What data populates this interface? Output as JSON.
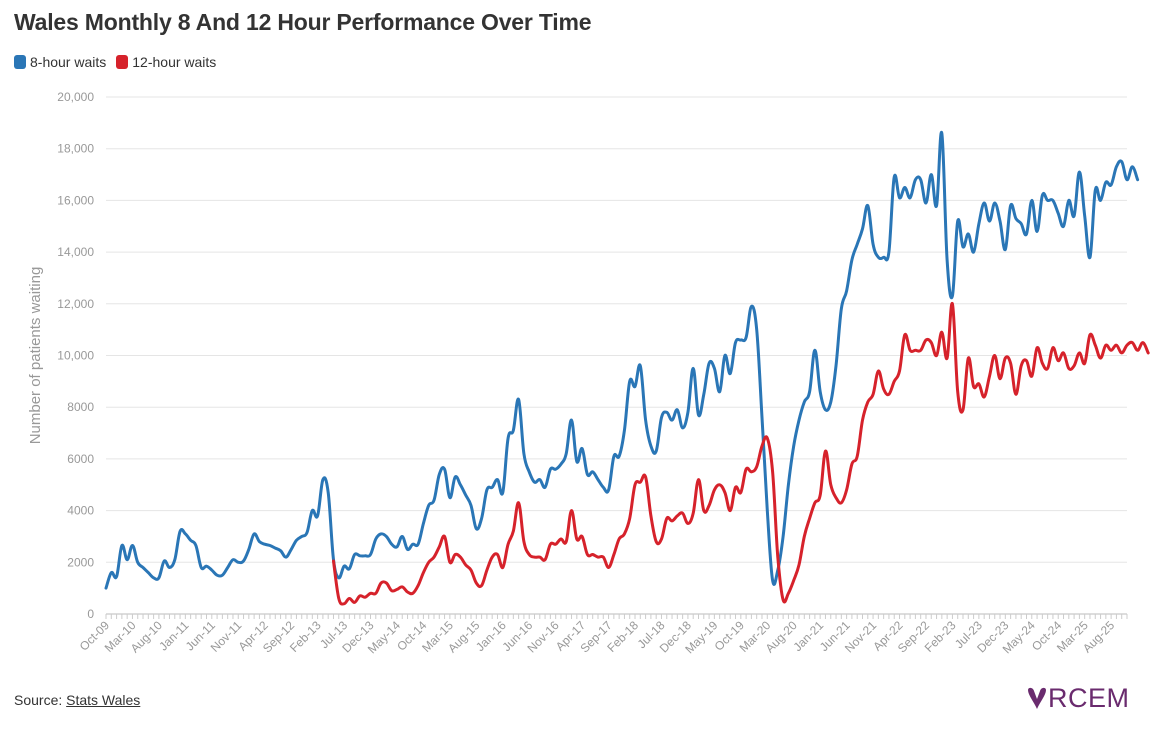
{
  "title": "Wales Monthly 8 And 12 Hour Performance Over Time",
  "source": {
    "label": "Source:",
    "link_text": "Stats Wales"
  },
  "logo_text": "RCEM",
  "colors": {
    "series_8": "#2a76b6",
    "series_12": "#d6222b",
    "logo": "#6a2b6e",
    "grid": "#e5e5e5"
  },
  "chart_data": {
    "type": "line",
    "ylabel": "Number of patients waiting",
    "ylim": [
      0,
      20000
    ],
    "y_ticks": [
      {
        "value": 0,
        "label": "0"
      },
      {
        "value": 2000,
        "label": "2000"
      },
      {
        "value": 4000,
        "label": "4000"
      },
      {
        "value": 6000,
        "label": "6000"
      },
      {
        "value": 8000,
        "label": "8000"
      },
      {
        "value": 10000,
        "label": "10,000"
      },
      {
        "value": 12000,
        "label": "12,000"
      },
      {
        "value": 14000,
        "label": "14,000"
      },
      {
        "value": 16000,
        "label": "16,000"
      },
      {
        "value": 18000,
        "label": "18,000"
      },
      {
        "value": 20000,
        "label": "20,000"
      }
    ],
    "x_start": "Oct-09",
    "x_end": "Nov-25",
    "x_tick_labels": [
      "Oct-09",
      "Mar-10",
      "Aug-10",
      "Jan-11",
      "Jun-11",
      "Nov-11",
      "Apr-12",
      "Sep-12",
      "Feb-13",
      "Jul-13",
      "Dec-13",
      "May-14",
      "Oct-14",
      "Mar-15",
      "Aug-15",
      "Jan-16",
      "Jun-16",
      "Nov-16",
      "Apr-17",
      "Sep-17",
      "Feb-18",
      "Jul-18",
      "Dec-18",
      "May-19",
      "Oct-19",
      "Mar-20",
      "Aug-20",
      "Jan-21",
      "Jun-21",
      "Nov-21",
      "Apr-22",
      "Sep-22",
      "Feb-23",
      "Jul-23",
      "Dec-23",
      "May-24",
      "Oct-24",
      "Mar-25",
      "Aug-25"
    ],
    "legend_position": "top-left",
    "series": [
      {
        "name": "8-hour waits",
        "start": "Oct-09",
        "values": [
          1000,
          1600,
          1450,
          2650,
          2100,
          2650,
          2000,
          1800,
          1600,
          1400,
          1400,
          2050,
          1800,
          2100,
          3200,
          3100,
          2850,
          2650,
          1800,
          1850,
          1700,
          1500,
          1500,
          1800,
          2100,
          2000,
          2050,
          2500,
          3100,
          2800,
          2700,
          2650,
          2550,
          2450,
          2200,
          2500,
          2850,
          3000,
          3150,
          4000,
          3800,
          5200,
          4700,
          2100,
          1400,
          1850,
          1750,
          2300,
          2250,
          2250,
          2300,
          2900,
          3100,
          3000,
          2700,
          2600,
          3000,
          2500,
          2700,
          2700,
          3500,
          4200,
          4400,
          5400,
          5600,
          4500,
          5300,
          5000,
          4600,
          4200,
          3300,
          3700,
          4800,
          4900,
          5200,
          4700,
          6800,
          7100,
          8300,
          6200,
          5500,
          5100,
          5200,
          4900,
          5600,
          5600,
          5800,
          6200,
          7500,
          5900,
          6400,
          5400,
          5500,
          5200,
          4900,
          4800,
          6100,
          6100,
          7100,
          9000,
          8800,
          9600,
          7500,
          6500,
          6300,
          7600,
          7800,
          7500,
          7900,
          7200,
          7800,
          9500,
          7700,
          8500,
          9700,
          9500,
          8600,
          10000,
          9300,
          10500,
          10600,
          10700,
          11900,
          11000,
          7600,
          4000,
          1300,
          1700,
          3000,
          5000,
          6500,
          7500,
          8200,
          8600,
          10200,
          8600,
          7900,
          8200,
          9600,
          11800,
          12500,
          13700,
          14300,
          14900,
          15800,
          14300,
          13800,
          13800,
          14000,
          16900,
          16100,
          16500,
          16100,
          16800,
          16800,
          15900,
          17000,
          15800,
          18600,
          13700,
          12300,
          15200,
          14200,
          14700,
          14000,
          15100,
          15900,
          15200,
          15900,
          15200,
          14100,
          15800,
          15300,
          15100,
          14700,
          16000,
          14800,
          16200,
          16000,
          16000,
          15500,
          15000,
          16000,
          15400,
          17100,
          15400,
          13800,
          16400,
          16000,
          16700,
          16600,
          17300,
          17500,
          16800,
          17300,
          16800
        ]
      },
      {
        "name": "12-hour waits",
        "start": "May-13",
        "values": [
          2050,
          600,
          400,
          600,
          450,
          700,
          650,
          800,
          800,
          1200,
          1200,
          900,
          950,
          1050,
          850,
          800,
          1100,
          1600,
          2000,
          2200,
          2600,
          3000,
          2000,
          2300,
          2200,
          1900,
          1700,
          1200,
          1100,
          1700,
          2200,
          2300,
          1800,
          2700,
          3200,
          4300,
          2800,
          2300,
          2200,
          2200,
          2100,
          2700,
          2700,
          2900,
          2800,
          4000,
          2900,
          3000,
          2300,
          2300,
          2200,
          2200,
          1800,
          2300,
          2900,
          3100,
          3700,
          5000,
          5100,
          5300,
          3800,
          2800,
          2900,
          3700,
          3600,
          3800,
          3900,
          3500,
          3900,
          5200,
          4000,
          4200,
          4800,
          5000,
          4700,
          4000,
          4900,
          4700,
          5600,
          5500,
          5700,
          6500,
          6800,
          5500,
          2200,
          550,
          800,
          1300,
          1900,
          3000,
          3700,
          4300,
          4600,
          6300,
          5000,
          4500,
          4300,
          4800,
          5800,
          6100,
          7500,
          8200,
          8500,
          9400,
          8700,
          8500,
          9000,
          9400,
          10800,
          10200,
          10200,
          10200,
          10600,
          10500,
          10000,
          10900,
          9900,
          12000,
          8600,
          7900,
          9900,
          8800,
          8900,
          8400,
          9200,
          10000,
          9100,
          9900,
          9700,
          8500,
          9600,
          9800,
          9200,
          10300,
          9700,
          9500,
          10300,
          9800,
          10100,
          9500,
          9600,
          10100,
          9700,
          10800,
          10400,
          9900,
          10400,
          10200,
          10400,
          10100,
          10400,
          10500,
          10200,
          10500,
          10100
        ]
      }
    ]
  }
}
